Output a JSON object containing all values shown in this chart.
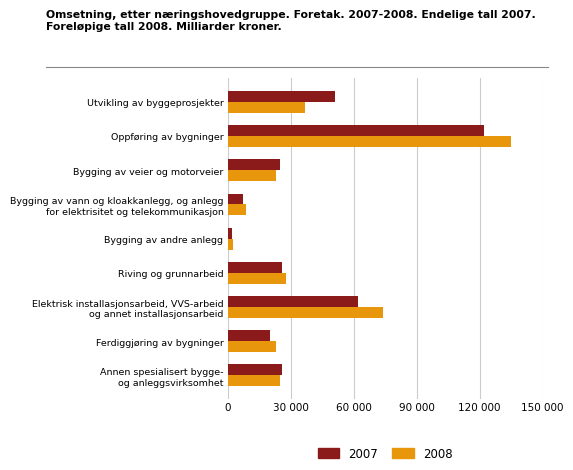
{
  "title_line1": "Omsetning, etter næringshovedgruppe. Foretak. 2007-2008. Endelige tall 2007.",
  "title_line2": "Foreløpige tall 2008. Milliarder kroner.",
  "categories": [
    "Utvikling av byggeprosjekter",
    "Oppføring av bygninger",
    "Bygging av veier og motorveier",
    "Bygging av vann og kloakkanlegg, og anlegg\nfor elektrisitet og telekommunikasjon",
    "Bygging av andre anlegg",
    "Riving og grunnarbeid",
    "Elektrisk installasjonsarbeid, VVS-arbeid\nog annet installasjonsarbeid",
    "Ferdiggjøring av bygninger",
    "Annen spesialisert bygge-\nog anleggsvirksomhet"
  ],
  "values_2007": [
    51000,
    122000,
    25000,
    7500,
    2000,
    26000,
    62000,
    20000,
    26000
  ],
  "values_2008": [
    37000,
    135000,
    23000,
    8500,
    2500,
    28000,
    74000,
    23000,
    25000
  ],
  "color_2007": "#8B1A1A",
  "color_2008": "#E8960C",
  "xlim": [
    0,
    150000
  ],
  "xticks": [
    0,
    30000,
    60000,
    90000,
    120000,
    150000
  ],
  "xticklabels": [
    "0",
    "30 000",
    "60 000",
    "90 000",
    "120 000",
    "150 000"
  ],
  "bar_height": 0.32,
  "background_color": "#ffffff",
  "grid_color": "#cccccc",
  "legend_labels": [
    "2007",
    "2008"
  ]
}
